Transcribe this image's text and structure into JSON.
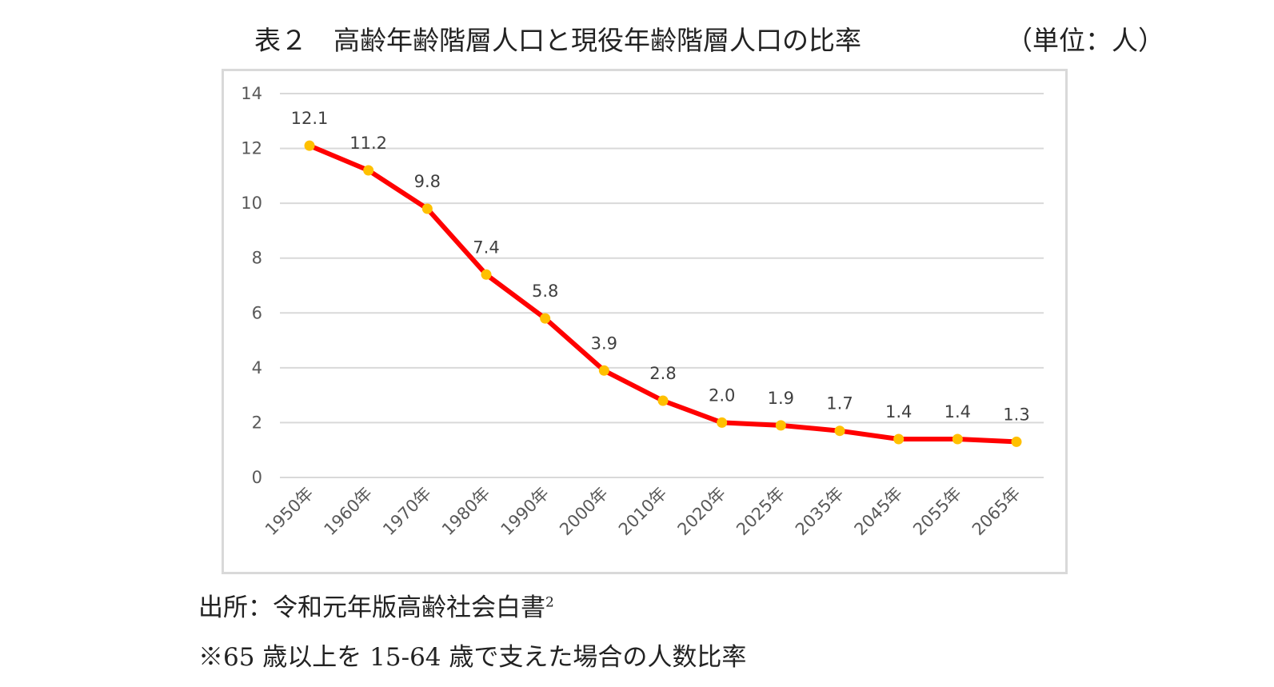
{
  "header": {
    "title": "表２　高齢年齢階層人口と現役年齢階層人口の比率",
    "unit": "（単位：人）"
  },
  "footer": {
    "source": "出所：令和元年版高齢社会白書",
    "source_sup": "2",
    "note": "※65 歳以上を 15-64 歳で支えた場合の人数比率"
  },
  "chart_data": {
    "type": "line",
    "categories": [
      "1950年",
      "1960年",
      "1970年",
      "1980年",
      "1990年",
      "2000年",
      "2010年",
      "2020年",
      "2025年",
      "2035年",
      "2045年",
      "2055年",
      "2065年"
    ],
    "series": [
      {
        "values": [
          12.1,
          11.2,
          9.8,
          7.4,
          5.8,
          3.9,
          2.8,
          2.0,
          1.9,
          1.7,
          1.4,
          1.4,
          1.3
        ],
        "labels": [
          "12.1",
          "11.2",
          "9.8",
          "7.4",
          "5.8",
          "3.9",
          "2.8",
          "2.0",
          "1.9",
          "1.7",
          "1.4",
          "1.4",
          "1.3"
        ],
        "line_color": "#ff0000",
        "marker_color": "#ffc000"
      }
    ],
    "ylim": [
      0,
      14
    ],
    "yticks": [
      0,
      2,
      4,
      6,
      8,
      10,
      12,
      14
    ],
    "grid": true,
    "legend": "none",
    "xlabel": "",
    "ylabel": ""
  }
}
